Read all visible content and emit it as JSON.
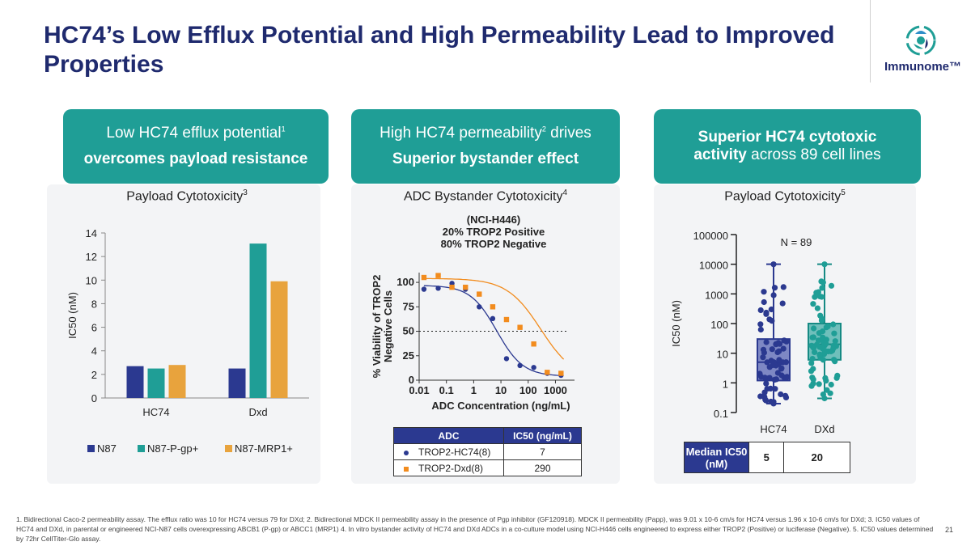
{
  "title": "HC74’s Low Efflux Potential and High Permeability Lead to Improved Properties",
  "logo": {
    "name": "Immunome™"
  },
  "colors": {
    "navy": "#2b3990",
    "teal": "#1f9e96",
    "orange": "#e8a33d",
    "marker_orange": "#f28c1e",
    "banner": "#1f9e96",
    "box": "#4a5ab0"
  },
  "banners": [
    {
      "line1": "Low HC74 efflux potential",
      "sup1": "1",
      "line2": "overcomes payload resistance"
    },
    {
      "line1": "High HC74 permeability",
      "sup1": "2",
      "line1b": " drives",
      "line2": "Superior bystander effect"
    },
    {
      "line1_bold": "Superior HC74 cytotoxic",
      "line2_bold": "activity",
      "line2": " across 89 cell lines"
    }
  ],
  "panel_titles": [
    {
      "text": "Payload Cytotoxicity",
      "sup": "3"
    },
    {
      "text": "ADC Bystander Cytotoxicity",
      "sup": "4"
    },
    {
      "text": "Payload Cytotoxicity",
      "sup": "5"
    }
  ],
  "chart_data": [
    {
      "type": "bar",
      "title": "Payload Cytotoxicity",
      "ylabel": "IC50 (nM)",
      "ylim": [
        0,
        14
      ],
      "yticks": [
        "0",
        "2",
        "4",
        "6",
        "8",
        "10",
        "12",
        "14"
      ],
      "categories": [
        "HC74",
        "Dxd"
      ],
      "series": [
        {
          "name": "N87",
          "values": [
            2.7,
            2.5
          ]
        },
        {
          "name": "N87-P-gp+",
          "values": [
            2.5,
            13.1
          ]
        },
        {
          "name": "N87-MRP1+",
          "values": [
            2.8,
            9.9
          ]
        }
      ],
      "legend": "bottom"
    },
    {
      "type": "scatter",
      "title_lines": [
        "(NCI-H446)",
        "20% TROP2 Positive",
        "80% TROP2 Negative"
      ],
      "xlabel": "ADC Concentration (ng/mL)",
      "ylabel_lines": [
        "% Viability of TROP2",
        "Negative Cells"
      ],
      "xscale": "log",
      "xlim": [
        0.01,
        5000
      ],
      "ylim": [
        0,
        110
      ],
      "xticks": [
        "0.01",
        "0.1",
        "1",
        "10",
        "100",
        "1000"
      ],
      "yticks": [
        "0",
        "25",
        "50",
        "75",
        "100"
      ],
      "reference_line_y": 50,
      "series": [
        {
          "name": "TROP2-HC74(8)",
          "marker": "circle",
          "x": [
            0.015,
            0.05,
            0.16,
            0.5,
            1.6,
            5,
            16,
            50,
            160,
            500,
            1600
          ],
          "y": [
            93,
            94,
            99,
            93,
            75,
            63,
            22,
            15,
            13,
            7,
            5
          ],
          "ic50": 7
        },
        {
          "name": "TROP2-Dxd(8)",
          "marker": "square",
          "x": [
            0.015,
            0.05,
            0.16,
            0.5,
            1.6,
            5,
            16,
            50,
            160,
            500,
            1600
          ],
          "y": [
            105,
            107,
            95,
            95,
            88,
            75,
            62,
            54,
            37,
            8,
            7
          ],
          "ic50": 290
        }
      ],
      "table": {
        "headers": [
          "ADC",
          "IC50 (ng/mL)"
        ],
        "rows": [
          [
            "TROP2-HC74(8)",
            "7"
          ],
          [
            "TROP2-Dxd(8)",
            "290"
          ]
        ]
      }
    },
    {
      "type": "box",
      "title": "Payload Cytotoxicity",
      "ylabel": "IC50 (nM)",
      "yscale": "log",
      "ylim": [
        0.1,
        100000
      ],
      "yticks": [
        "0.1",
        "1",
        "10",
        "100",
        "1000",
        "10000",
        "100000"
      ],
      "annotation": "N = 89",
      "categories": [
        "HC74",
        "DXd"
      ],
      "boxes": [
        {
          "name": "HC74",
          "min": 0.2,
          "q1": 1.2,
          "median": 5,
          "q3": 30,
          "max": 10000
        },
        {
          "name": "DXd",
          "min": 0.3,
          "q1": 6,
          "median": 20,
          "q3": 100,
          "max": 10000
        }
      ],
      "table": {
        "row_label": "Median IC50 (nM)",
        "values": [
          "5",
          "20"
        ]
      }
    }
  ],
  "footnote": "1. Bidirectional Caco-2 permeability assay. The efflux ratio was 10 for HC74 versus 79 for DXd; 2. Bidirectional MDCK II permeability assay in the presence of Pgp inhibitor (GF120918). MDCK II permeability (Papp), was 9.01 x 10-6 cm/s for HC74 versus 1.96 x 10-6 cm/s for DXd; 3. IC50 values of HC74 and DXd, in parental or engineered NCI-N87 cells overexpressing ABCB1 (P-gp) or ABCC1 (MRP1) 4. In vitro bystander activity of HC74 and DXd ADCs in a co-culture model using NCI-H446 cells engineered to express either TROP2 (Positive) or luciferase (Negative). 5. IC50 values determined by 72hr CellTiter-Glo assay.",
  "page_number": "21"
}
